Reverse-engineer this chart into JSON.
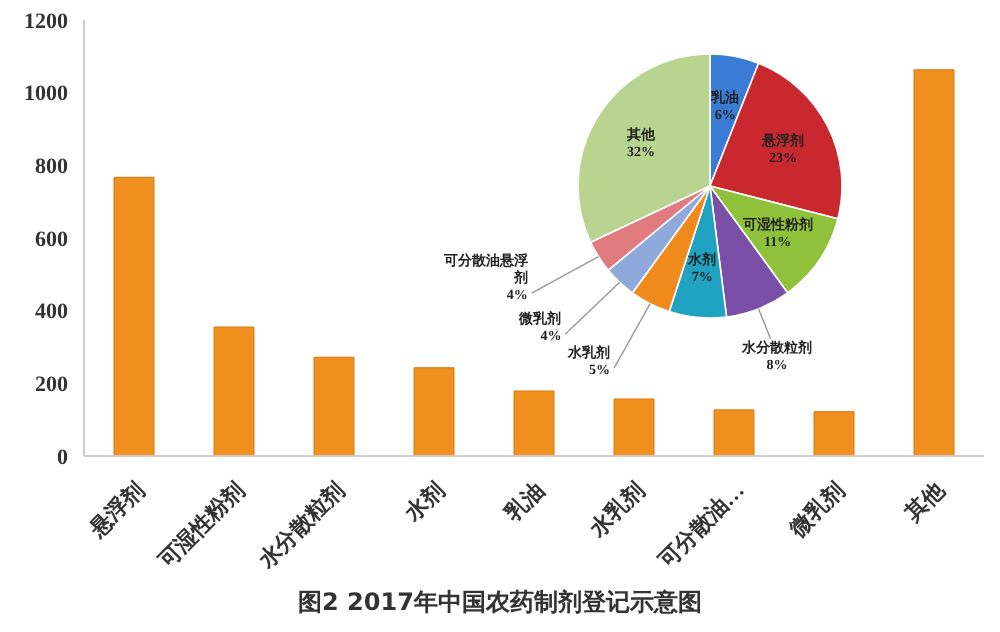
{
  "chart_data": [
    {
      "type": "bar",
      "title": "图2 2017年中国农药制剂登记示意图",
      "categories": [
        "悬浮剂",
        "可湿性粉剂",
        "水分散粒剂",
        "水剂",
        "乳油",
        "水乳剂",
        "可分散油…",
        "微乳剂",
        "其他"
      ],
      "values": [
        767,
        355,
        272,
        243,
        179,
        157,
        127,
        122,
        1063
      ],
      "color": "#f0901e",
      "ylim": [
        0,
        1200
      ],
      "yticks": [
        0,
        200,
        400,
        600,
        800,
        1000,
        1200
      ],
      "grid": false,
      "legend": false
    },
    {
      "type": "pie",
      "categories": [
        "乳油",
        "悬浮剂",
        "可湿性粉剂",
        "水分散粒剂",
        "水剂",
        "水乳剂",
        "微乳剂",
        "可分散油悬浮剂",
        "其他"
      ],
      "values": [
        6,
        23,
        11,
        8,
        7,
        5,
        4,
        4,
        32
      ],
      "colors": [
        "#3a7bd5",
        "#c8282e",
        "#8fc23a",
        "#7b4fa8",
        "#1fa3c0",
        "#f08a1c",
        "#8fa9dc",
        "#e07c80",
        "#b8d48f"
      ],
      "value_labels": [
        "6%",
        "23%",
        "11%",
        "8%",
        "7%",
        "5%",
        "4%",
        "4%",
        "32%"
      ],
      "legend": false
    }
  ]
}
